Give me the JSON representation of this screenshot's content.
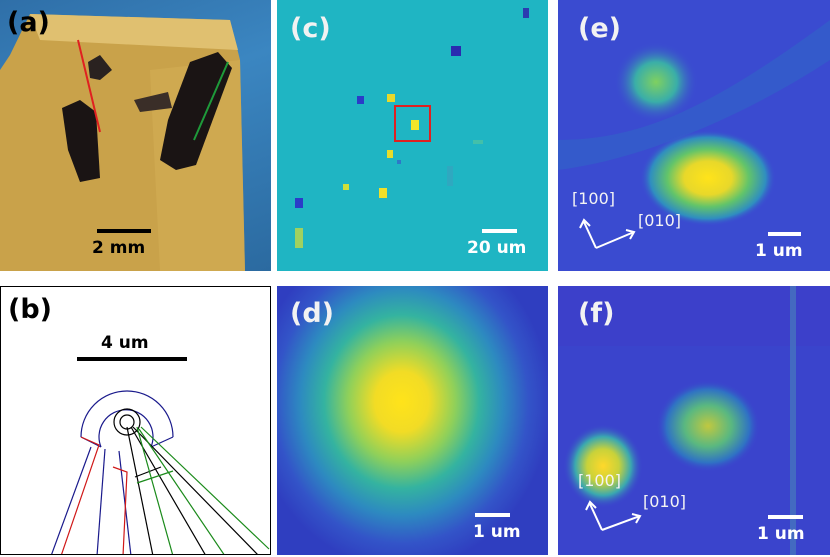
{
  "panels": {
    "a": {
      "label": "(a)",
      "scale": "2 mm"
    },
    "b": {
      "label": "(b)",
      "scale": "4 um"
    },
    "c": {
      "label": "(c)",
      "scale": "20 um"
    },
    "d": {
      "label": "(d)",
      "scale": "1 um"
    },
    "e": {
      "label": "(e)",
      "scale": "1 um",
      "axis1": "[100]",
      "axis2": "[010]"
    },
    "f": {
      "label": "(f)",
      "scale": "1 um",
      "axis1": "[100]",
      "axis2": "[010]"
    }
  },
  "colors": {
    "photo_board": "#c9a24a",
    "sample": "#1a1414",
    "red_line": "#e02020",
    "green_line": "#1e9a3a",
    "diagram_blue": "#1a1a8c",
    "diagram_green": "#1a8a1a",
    "diagram_red": "#d01818",
    "highlight_box": "#e02020",
    "map_background": "#1fb5c3",
    "hot": "#ffe31a"
  }
}
